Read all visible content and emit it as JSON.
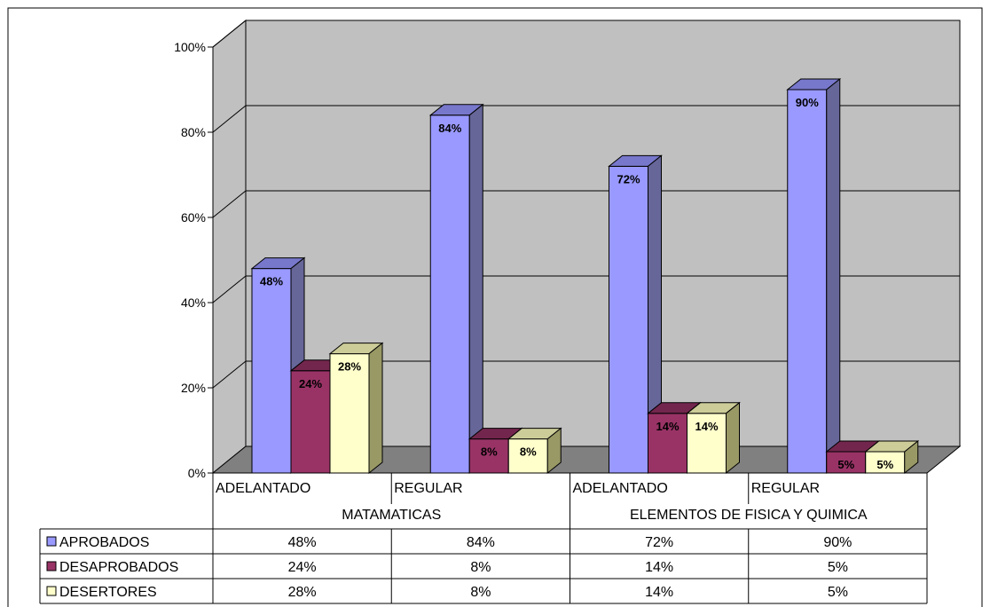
{
  "chart_data": {
    "type": "bar",
    "title": "",
    "xlabel": "",
    "ylabel": "",
    "ylim": [
      0,
      100
    ],
    "y_ticks": [
      "0%",
      "20%",
      "40%",
      "60%",
      "80%",
      "100%"
    ],
    "grid": true,
    "legend": "table-bottom",
    "categories": [
      "ADELANTADO",
      "REGULAR",
      "ADELANTADO",
      "REGULAR"
    ],
    "groups": [
      {
        "label": "MATAMATICAS",
        "span": 2
      },
      {
        "label": "ELEMENTOS DE FISICA Y QUIMICA",
        "span": 2
      }
    ],
    "series": [
      {
        "name": "APROBADOS",
        "color": "#9999FF",
        "values": [
          48,
          84,
          72,
          90
        ],
        "labels": [
          "48%",
          "84%",
          "72%",
          "90%"
        ]
      },
      {
        "name": "DESAPROBADOS",
        "color": "#993366",
        "values": [
          24,
          8,
          14,
          5
        ],
        "labels": [
          "24%",
          "8%",
          "14%",
          "5%"
        ]
      },
      {
        "name": "DESERTORES",
        "color": "#FFFFCC",
        "values": [
          28,
          8,
          14,
          5
        ],
        "labels": [
          "28%",
          "8%",
          "14%",
          "5%"
        ]
      }
    ]
  },
  "colors": {
    "wall": "#C0C0C0",
    "floor": "#808080",
    "grid": "#000000"
  }
}
